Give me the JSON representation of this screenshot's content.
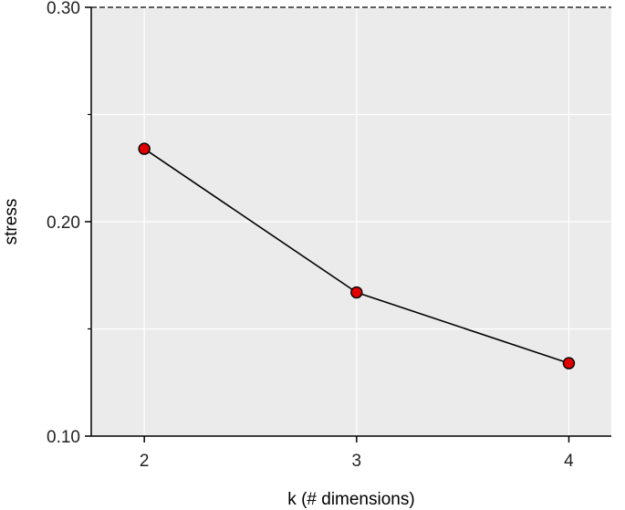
{
  "chart_data": {
    "type": "line",
    "title": "",
    "xlabel": "k (# dimensions)",
    "ylabel": "stress",
    "x": [
      2,
      3,
      4
    ],
    "series": [
      {
        "values": [
          0.234,
          0.167,
          0.134
        ]
      }
    ],
    "xlim": [
      1.75,
      4.2
    ],
    "ylim": [
      0.1,
      0.3
    ],
    "xticks": [
      2,
      3,
      4
    ],
    "xtick_labels": [
      "2",
      "3",
      "4"
    ],
    "yticks": [
      0.1,
      0.2,
      0.3
    ],
    "ytick_labels": [
      "0.10",
      "0.20",
      "0.30"
    ],
    "y_minor_ticks": [
      0.15,
      0.25
    ],
    "grid": true,
    "legend": "none",
    "colors": {
      "panel_background": "#ebebeb",
      "grid": "#ffffff",
      "line": "#000000",
      "marker_fill": "#e00000",
      "marker_stroke": "#000000",
      "axis": "#000000"
    }
  }
}
